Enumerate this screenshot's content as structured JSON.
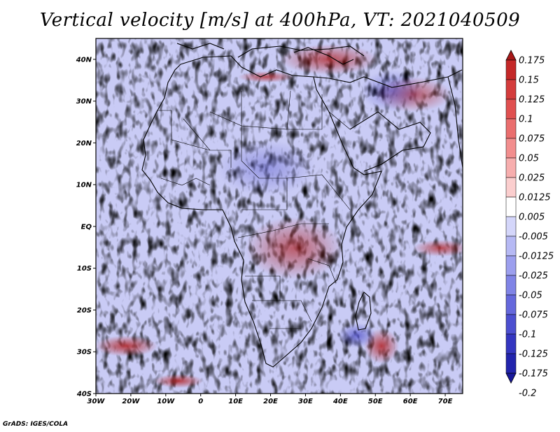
{
  "title": "Vertical velocity [m/s] at 400hPa, VT: 2021040509",
  "credit": "GrADS: IGES/COLA",
  "colors": {
    "background": "#ffffff",
    "coast": "#000000",
    "frame": "#000000"
  },
  "map": {
    "lat_labels": [
      "40N",
      "30N",
      "20N",
      "10N",
      "EQ",
      "10S",
      "20S",
      "30S",
      "40S"
    ],
    "lat_values": [
      40,
      30,
      20,
      10,
      0,
      -10,
      -20,
      -30,
      -40
    ],
    "lon_labels": [
      "30W",
      "20W",
      "10W",
      "0",
      "10E",
      "20E",
      "30E",
      "40E",
      "50E",
      "60E",
      "70E"
    ],
    "lon_values": [
      -30,
      -20,
      -10,
      0,
      10,
      20,
      30,
      40,
      50,
      60,
      70
    ],
    "lon_range": [
      -30,
      75
    ],
    "lat_range": [
      -40,
      45
    ]
  },
  "colorbar": {
    "labels": [
      "0.175",
      "0.15",
      "0.125",
      "0.1",
      "0.075",
      "0.05",
      "0.025",
      "0.0125",
      "0.005",
      "-0.005",
      "-0.0125",
      "-0.025",
      "-0.05",
      "-0.075",
      "-0.1",
      "-0.125",
      "-0.175",
      "-0.2"
    ],
    "colors": [
      "#a81818",
      "#c42828",
      "#d43c3c",
      "#e05050",
      "#ea6e6e",
      "#f28e8e",
      "#f7aeae",
      "#fbcece",
      "#ffffff",
      "#d4d6fa",
      "#b6b9f4",
      "#9c9fee",
      "#8084e6",
      "#6568dc",
      "#4c4fd0",
      "#3436c0",
      "#2224ac",
      "#18189a"
    ]
  }
}
